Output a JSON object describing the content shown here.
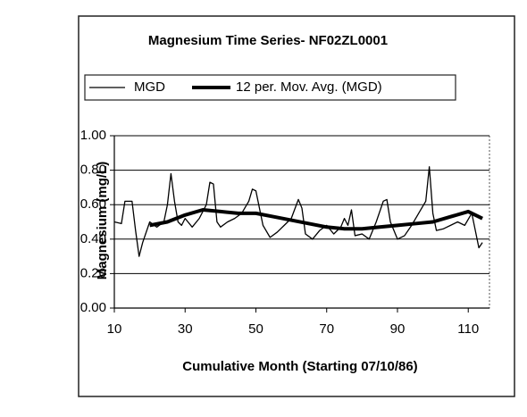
{
  "chart_data": {
    "type": "line",
    "title": "Magnesium Time Series- NF02ZL0001",
    "x_label": "Cumulative Month (Starting 07/10/86)",
    "y_label": "Magnesium (mg/L)",
    "xlim": [
      10,
      116
    ],
    "xticks": [
      10,
      30,
      50,
      70,
      90,
      110
    ],
    "ylim": [
      0,
      1
    ],
    "yticks": [
      {
        "value": 0,
        "label": "0.00"
      },
      {
        "value": 0.2,
        "label": "0.20"
      },
      {
        "value": 0.4,
        "label": "0.40"
      },
      {
        "value": 0.6,
        "label": "0.60"
      },
      {
        "value": 0.8,
        "label": "0.80"
      },
      {
        "value": 1,
        "label": "1.00"
      }
    ],
    "grid": true,
    "legend": "top",
    "series": [
      {
        "name": "MGD",
        "color": "#000000",
        "width": 1.3,
        "x": [
          10,
          12,
          13,
          15,
          16,
          17,
          18,
          20,
          22,
          24,
          25,
          26,
          27,
          28,
          29,
          30,
          32,
          34,
          36,
          37,
          38,
          39,
          40,
          42,
          44,
          46,
          48,
          49,
          50,
          52,
          54,
          56,
          58,
          60,
          62,
          63,
          64,
          66,
          68,
          70,
          72,
          74,
          75,
          76,
          77,
          78,
          80,
          82,
          84,
          86,
          87,
          88,
          90,
          92,
          94,
          96,
          98,
          99,
          100,
          101,
          103,
          105,
          107,
          109,
          111,
          113,
          114
        ],
        "values": [
          0.5,
          0.49,
          0.62,
          0.62,
          0.45,
          0.3,
          0.38,
          0.5,
          0.47,
          0.5,
          0.6,
          0.78,
          0.62,
          0.5,
          0.48,
          0.52,
          0.47,
          0.52,
          0.6,
          0.73,
          0.72,
          0.5,
          0.47,
          0.5,
          0.52,
          0.55,
          0.62,
          0.69,
          0.68,
          0.48,
          0.41,
          0.44,
          0.48,
          0.52,
          0.63,
          0.58,
          0.43,
          0.4,
          0.45,
          0.48,
          0.43,
          0.47,
          0.52,
          0.48,
          0.57,
          0.42,
          0.43,
          0.4,
          0.5,
          0.62,
          0.63,
          0.5,
          0.4,
          0.42,
          0.48,
          0.55,
          0.62,
          0.82,
          0.55,
          0.45,
          0.46,
          0.48,
          0.5,
          0.48,
          0.55,
          0.35,
          0.38
        ]
      },
      {
        "name": "12 per. Mov. Avg. (MGD)",
        "color": "#000000",
        "width": 4,
        "x": [
          20,
          25,
          30,
          35,
          40,
          45,
          50,
          55,
          60,
          65,
          70,
          75,
          80,
          85,
          90,
          95,
          100,
          105,
          110,
          114
        ],
        "values": [
          0.48,
          0.5,
          0.54,
          0.57,
          0.56,
          0.55,
          0.55,
          0.53,
          0.51,
          0.49,
          0.47,
          0.46,
          0.46,
          0.47,
          0.48,
          0.49,
          0.5,
          0.53,
          0.56,
          0.52
        ]
      }
    ]
  }
}
